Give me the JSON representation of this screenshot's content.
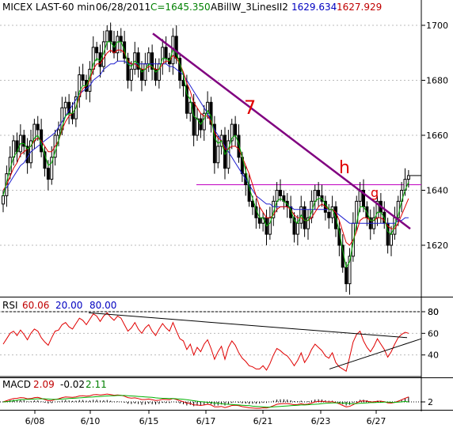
{
  "header": {
    "symbol": "MICEX LAST-60 min",
    "date": "06/28/2011",
    "close": "C=1645.350",
    "indicator": "ABillW_3LinesII2",
    "ind_val1": "1629.634",
    "ind_val2": "1627.929"
  },
  "rsi_header": {
    "label": "RSI",
    "v1": "60.06",
    "v2": "20.00",
    "v3": "80.00"
  },
  "macd_header": {
    "label": "MACD",
    "v1": "2.09",
    "v2": "-0.02",
    "v3": "2.11"
  },
  "annotations": {
    "seven": "7",
    "h": "h",
    "g": "g"
  },
  "colors": {
    "blue_ma": "#2020d0",
    "green_ma": "#00b000",
    "red_ma": "#e00000",
    "trendline": "#800080",
    "level_line": "#c000c0",
    "rsi": "#e00000",
    "header_close": "#008000",
    "header_blue": "#0000c0",
    "header_red": "#c00000",
    "annotation": "#e00000"
  },
  "chart_data": {
    "type": "candlestick",
    "price_axis": {
      "ticks": [
        1620,
        1640,
        1660,
        1680,
        1700
      ],
      "ylim": [
        1600,
        1710
      ]
    },
    "rsi_axis": {
      "ticks": [
        40,
        60,
        80
      ],
      "ylim": [
        20,
        85
      ],
      "levels": [
        20,
        80
      ]
    },
    "macd_axis": {
      "ticks": [
        2
      ]
    },
    "x_dates": [
      "6/08",
      "6/10",
      "6/15",
      "6/17",
      "6/21",
      "6/23",
      "6/27"
    ],
    "closes": [
      1638,
      1646,
      1652,
      1658,
      1654,
      1660,
      1656,
      1650,
      1658,
      1664,
      1662,
      1654,
      1648,
      1644,
      1652,
      1660,
      1662,
      1670,
      1672,
      1668,
      1666,
      1674,
      1682,
      1680,
      1676,
      1684,
      1692,
      1690,
      1685,
      1694,
      1698,
      1694,
      1690,
      1696,
      1694,
      1688,
      1680,
      1684,
      1690,
      1684,
      1680,
      1686,
      1690,
      1684,
      1680,
      1686,
      1692,
      1688,
      1686,
      1696,
      1688,
      1680,
      1678,
      1668,
      1672,
      1660,
      1666,
      1662,
      1668,
      1672,
      1664,
      1650,
      1656,
      1660,
      1648,
      1658,
      1664,
      1660,
      1652,
      1646,
      1642,
      1636,
      1634,
      1630,
      1628,
      1630,
      1624,
      1630,
      1636,
      1640,
      1638,
      1636,
      1634,
      1630,
      1624,
      1628,
      1634,
      1626,
      1630,
      1636,
      1640,
      1638,
      1636,
      1632,
      1630,
      1634,
      1626,
      1620,
      1612,
      1606,
      1616,
      1628,
      1636,
      1640,
      1634,
      1630,
      1626,
      1630,
      1636,
      1632,
      1628,
      1620,
      1624,
      1630,
      1636,
      1640,
      1644,
      1645.35
    ],
    "moving_averages": [
      {
        "color": "blue",
        "values": [
          1640,
          1641,
          1643,
          1645,
          1647,
          1649,
          1650,
          1652,
          1654,
          1655,
          1656,
          1657,
          1658,
          1659,
          1660,
          1661,
          1663,
          1665,
          1667,
          1669,
          1671,
          1673,
          1675,
          1676,
          1677,
          1678,
          1680,
          1681,
          1682,
          1684,
          1685,
          1686,
          1686,
          1687,
          1687,
          1687,
          1686,
          1686,
          1686,
          1686,
          1686,
          1686,
          1686,
          1686,
          1686,
          1686,
          1686,
          1686,
          1685,
          1685,
          1684,
          1683,
          1682,
          1680,
          1678,
          1676,
          1674,
          1672,
          1670,
          1668,
          1665,
          1662,
          1660,
          1658,
          1656,
          1654,
          1652,
          1650,
          1648,
          1646,
          1644,
          1642,
          1640,
          1638,
          1637,
          1636,
          1635,
          1635,
          1634,
          1634,
          1634,
          1634,
          1634,
          1634,
          1633,
          1633,
          1633,
          1633,
          1633,
          1633,
          1633,
          1633,
          1633,
          1633,
          1633,
          1633,
          1632,
          1631,
          1630,
          1629,
          1628,
          1628,
          1628,
          1628,
          1628,
          1628,
          1628,
          1628,
          1628,
          1628,
          1628,
          1628,
          1628,
          1628,
          1629,
          1629,
          1630,
          1630
        ]
      },
      {
        "color": "red",
        "values": [
          1640,
          1642,
          1645,
          1648,
          1650,
          1653,
          1654,
          1655,
          1656,
          1658,
          1659,
          1658,
          1656,
          1654,
          1654,
          1656,
          1658,
          1662,
          1665,
          1667,
          1668,
          1670,
          1674,
          1677,
          1678,
          1680,
          1684,
          1686,
          1686,
          1688,
          1690,
          1691,
          1690,
          1691,
          1691,
          1690,
          1687,
          1686,
          1686,
          1685,
          1684,
          1684,
          1685,
          1685,
          1684,
          1684,
          1686,
          1687,
          1687,
          1689,
          1688,
          1686,
          1683,
          1679,
          1676,
          1672,
          1670,
          1668,
          1667,
          1667,
          1665,
          1661,
          1659,
          1658,
          1655,
          1655,
          1656,
          1656,
          1655,
          1652,
          1649,
          1646,
          1642,
          1638,
          1634,
          1632,
          1630,
          1630,
          1631,
          1633,
          1634,
          1634,
          1634,
          1633,
          1631,
          1630,
          1630,
          1629,
          1629,
          1630,
          1632,
          1634,
          1635,
          1634,
          1633,
          1633,
          1632,
          1629,
          1625,
          1621,
          1620,
          1622,
          1625,
          1629,
          1630,
          1630,
          1629,
          1629,
          1630,
          1630,
          1629,
          1627,
          1626,
          1626,
          1628,
          1631,
          1634,
          1637
        ]
      },
      {
        "color": "green",
        "values": [
          1638,
          1643,
          1648,
          1652,
          1654,
          1657,
          1657,
          1655,
          1656,
          1659,
          1660,
          1657,
          1653,
          1649,
          1650,
          1654,
          1658,
          1663,
          1667,
          1668,
          1668,
          1670,
          1676,
          1678,
          1678,
          1681,
          1686,
          1688,
          1687,
          1690,
          1694,
          1694,
          1692,
          1694,
          1694,
          1691,
          1686,
          1685,
          1687,
          1686,
          1683,
          1684,
          1686,
          1685,
          1683,
          1684,
          1688,
          1688,
          1687,
          1691,
          1690,
          1686,
          1682,
          1675,
          1673,
          1667,
          1666,
          1664,
          1666,
          1669,
          1667,
          1659,
          1657,
          1658,
          1653,
          1655,
          1659,
          1660,
          1657,
          1652,
          1647,
          1641,
          1637,
          1633,
          1630,
          1630,
          1627,
          1628,
          1632,
          1636,
          1637,
          1636,
          1635,
          1633,
          1629,
          1628,
          1631,
          1629,
          1629,
          1632,
          1636,
          1637,
          1637,
          1635,
          1633,
          1633,
          1630,
          1625,
          1618,
          1612,
          1614,
          1621,
          1628,
          1634,
          1634,
          1632,
          1629,
          1629,
          1632,
          1632,
          1630,
          1625,
          1624,
          1627,
          1631,
          1636,
          1640,
          1643
        ]
      }
    ],
    "trendline": {
      "from": {
        "x": "6/15",
        "y": 1697
      },
      "to": {
        "x": "6/28",
        "y": 1626
      }
    },
    "level_line": 1642,
    "rsi": [
      50,
      55,
      60,
      62,
      58,
      63,
      59,
      54,
      60,
      64,
      62,
      56,
      52,
      49,
      56,
      62,
      63,
      68,
      70,
      66,
      64,
      69,
      74,
      72,
      68,
      73,
      78,
      76,
      71,
      76,
      79,
      75,
      72,
      76,
      74,
      68,
      62,
      65,
      70,
      64,
      60,
      65,
      68,
      62,
      58,
      64,
      69,
      65,
      62,
      70,
      62,
      55,
      53,
      45,
      50,
      40,
      47,
      43,
      50,
      54,
      46,
      36,
      43,
      48,
      36,
      47,
      53,
      49,
      42,
      37,
      34,
      30,
      29,
      27,
      27,
      30,
      26,
      32,
      40,
      46,
      44,
      41,
      39,
      35,
      30,
      35,
      42,
      33,
      38,
      45,
      50,
      47,
      44,
      39,
      37,
      42,
      33,
      29,
      27,
      25,
      38,
      52,
      59,
      62,
      53,
      47,
      43,
      48,
      55,
      50,
      45,
      38,
      43,
      50,
      56,
      59,
      61,
      60.06
    ],
    "macd": [
      0,
      0.5,
      1,
      1.4,
      1.5,
      1.8,
      1.7,
      1.3,
      1.4,
      1.8,
      1.9,
      1.5,
      1,
      0.5,
      0.6,
      1,
      1.3,
      1.8,
      2.1,
      2,
      1.9,
      2.1,
      2.5,
      2.6,
      2.4,
      2.6,
      3,
      3.1,
      2.9,
      3.1,
      3.3,
      3.1,
      2.8,
      2.9,
      2.8,
      2.4,
      1.8,
      1.6,
      1.7,
      1.4,
      1,
      1,
      1.2,
      0.9,
      0.6,
      0.7,
      1.1,
      1,
      0.9,
      1.4,
      1,
      0.5,
      0.1,
      -0.6,
      -0.6,
      -1.3,
      -1.3,
      -1.5,
      -1.3,
      -1,
      -1.3,
      -2.1,
      -2.1,
      -1.9,
      -2.4,
      -2,
      -1.5,
      -1.4,
      -1.6,
      -2,
      -2.2,
      -2.5,
      -2.6,
      -2.7,
      -2.7,
      -2.5,
      -2.6,
      -2.2,
      -1.6,
      -1,
      -0.8,
      -0.7,
      -0.7,
      -0.9,
      -1.2,
      -1.1,
      -0.8,
      -1.1,
      -0.9,
      -0.5,
      0,
      0.2,
      0.3,
      0.1,
      0,
      0.1,
      -0.3,
      -0.8,
      -1.5,
      -2.1,
      -1.9,
      -1.2,
      -0.4,
      0.3,
      0.4,
      0.3,
      0,
      0,
      0.3,
      0.3,
      0.1,
      -0.4,
      -0.5,
      -0.2,
      0.3,
      0.9,
      1.5,
      2.09
    ],
    "macd_signal": [
      0,
      0.1,
      0.3,
      0.5,
      0.7,
      0.9,
      1,
      1.1,
      1.1,
      1.2,
      1.3,
      1.3,
      1.3,
      1.2,
      1.1,
      1.1,
      1.1,
      1.2,
      1.3,
      1.4,
      1.5,
      1.6,
      1.7,
      1.8,
      1.9,
      2,
      2.1,
      2.2,
      2.3,
      2.4,
      2.5,
      2.6,
      2.6,
      2.7,
      2.7,
      2.7,
      2.6,
      2.5,
      2.4,
      2.3,
      2.2,
      2.1,
      2,
      1.9,
      1.7,
      1.6,
      1.5,
      1.5,
      1.4,
      1.4,
      1.3,
      1.2,
      1.1,
      0.9,
      0.7,
      0.5,
      0.3,
      0.1,
      0,
      -0.2,
      -0.3,
      -0.5,
      -0.6,
      -0.8,
      -0.9,
      -1,
      -1.1,
      -1.2,
      -1.3,
      -1.4,
      -1.5,
      -1.6,
      -1.8,
      -1.9,
      -2,
      -2.1,
      -2.2,
      -2.2,
      -2.1,
      -2,
      -1.9,
      -1.8,
      -1.7,
      -1.6,
      -1.5,
      -1.4,
      -1.3,
      -1.3,
      -1.2,
      -1.1,
      -1,
      -0.9,
      -0.7,
      -0.6,
      -0.5,
      -0.4,
      -0.4,
      -0.4,
      -0.5,
      -0.6,
      -0.7,
      -0.8,
      -0.7,
      -0.6,
      -0.5,
      -0.4,
      -0.3,
      -0.3,
      -0.2,
      -0.2,
      -0.1,
      -0.1,
      -0.2,
      -0.2,
      -0.1,
      0,
      0.2,
      -0.02
    ]
  }
}
